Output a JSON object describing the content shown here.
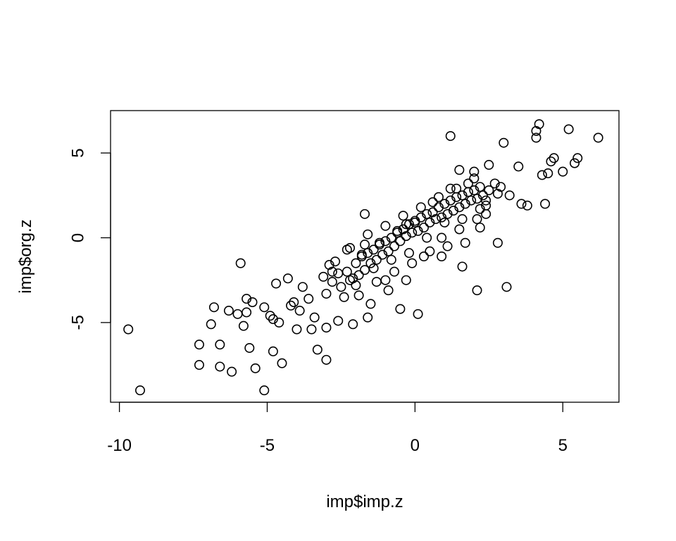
{
  "chart_data": {
    "type": "scatter",
    "title": "",
    "xlabel": "imp$imp.z",
    "ylabel": "imp$org.z",
    "xlim": [
      -10.3,
      6.9
    ],
    "ylim": [
      -9.7,
      7.5
    ],
    "x_ticks": [
      -10,
      -5,
      0,
      5
    ],
    "y_ticks": [
      -5,
      0,
      5
    ],
    "x_tick_labels": [
      "-10",
      "-5",
      "0",
      "5"
    ],
    "y_tick_labels": [
      "-5",
      "0",
      "5"
    ],
    "grid": false,
    "legend": "none",
    "marker": "open-circle",
    "point_color": "#000000",
    "series": [
      {
        "x": [
          -9.7,
          -9.3,
          -7.3,
          -7.3,
          -6.9,
          -6.8,
          -6.6,
          -6.6,
          -6.3,
          -6.2,
          -6.0,
          -5.9,
          -5.8,
          -5.7,
          -5.7,
          -5.6,
          -5.5,
          -5.4,
          -5.1,
          -5.1,
          -4.9,
          -4.8,
          -4.8,
          -4.7,
          -4.6,
          -4.5,
          -4.3,
          -4.2,
          -4.1,
          -4.0,
          -3.9,
          -3.8,
          -3.6,
          -3.5,
          -3.4,
          -3.3,
          -3.1,
          -3.0,
          -3.0,
          -2.9,
          -2.8,
          -2.6,
          -2.3,
          -2.2,
          -2.1,
          -1.7,
          -1.7,
          -1.6,
          -1.0,
          -0.5,
          -0.3,
          0.1,
          0.9,
          1.2,
          1.5,
          1.6,
          2.0,
          2.1,
          2.2,
          2.4,
          2.5,
          2.8,
          3.0,
          3.1,
          3.2,
          3.5,
          3.6,
          3.8,
          4.1,
          4.1,
          4.2,
          4.3,
          4.4,
          4.5,
          4.6,
          4.7,
          5.0,
          5.2,
          5.4,
          5.5,
          6.2
        ],
        "y": [
          -5.4,
          -9.0,
          -6.3,
          -7.5,
          -5.1,
          -4.1,
          -6.3,
          -7.6,
          -4.3,
          -7.9,
          -4.5,
          -1.5,
          -5.2,
          -3.6,
          -4.4,
          -6.5,
          -3.8,
          -7.7,
          -4.1,
          -9.0,
          -4.6,
          -4.8,
          -6.7,
          -2.7,
          -5.0,
          -7.4,
          -2.4,
          -4.0,
          -3.8,
          -5.4,
          -4.3,
          -2.9,
          -3.6,
          -5.4,
          -4.7,
          -6.6,
          -2.3,
          -5.3,
          -7.2,
          -1.6,
          -2.0,
          -4.9,
          -0.7,
          -2.5,
          -5.1,
          -0.4,
          1.4,
          -4.7,
          -2.5,
          -4.2,
          0.8,
          -4.5,
          -1.1,
          6.0,
          4.0,
          -1.7,
          3.9,
          -3.1,
          0.6,
          1.4,
          4.3,
          -0.3,
          5.6,
          -2.9,
          2.5,
          4.2,
          2.0,
          1.9,
          6.3,
          5.9,
          6.7,
          3.7,
          2.0,
          3.8,
          4.5,
          4.7,
          3.9,
          6.4,
          4.4,
          4.7,
          5.9
        ]
      },
      {
        "x": [
          -3.0,
          -2.8,
          -2.5,
          -2.3,
          -2.1,
          -2.0,
          -1.9,
          -1.8,
          -1.7,
          -1.6,
          -1.5,
          -1.4,
          -1.3,
          -1.2,
          -1.1,
          -1.0,
          -0.9,
          -0.8,
          -0.7,
          -0.6,
          -0.5,
          -0.4,
          -0.3,
          -0.2,
          -0.1,
          0.0,
          0.1,
          0.2,
          0.3,
          0.4,
          0.5,
          0.6,
          0.7,
          0.8,
          0.9,
          1.0,
          1.1,
          1.2,
          1.3,
          1.4,
          1.5,
          1.6,
          1.7,
          1.8,
          1.9,
          2.0,
          2.1,
          2.2,
          2.3,
          2.5,
          2.7,
          2.9,
          -2.7,
          -2.4,
          -2.2,
          -1.9,
          -1.6,
          -1.3,
          -1.0,
          -0.7,
          -0.4,
          -0.1,
          0.2,
          0.5,
          0.8,
          1.1,
          1.4,
          1.7,
          2.0,
          2.4,
          -2.6,
          -2.0,
          -1.4,
          -0.8,
          -0.2,
          0.4,
          1.0,
          1.6,
          2.2,
          2.8,
          -1.8,
          -1.2,
          -0.6,
          0.0,
          0.6,
          1.2,
          1.8,
          2.4,
          -1.5,
          -0.9,
          -0.3,
          0.3,
          0.9,
          1.5,
          2.1
        ],
        "y": [
          -3.3,
          -2.6,
          -2.9,
          -2.0,
          -2.4,
          -1.5,
          -2.2,
          -1.1,
          -1.9,
          -0.9,
          -1.5,
          -0.7,
          -1.3,
          -0.4,
          -1.0,
          -0.2,
          -0.8,
          0.0,
          -0.5,
          0.3,
          -0.2,
          0.5,
          0.1,
          0.8,
          0.3,
          1.0,
          0.4,
          1.2,
          0.6,
          1.4,
          0.9,
          1.5,
          1.1,
          1.8,
          1.2,
          2.0,
          1.4,
          2.2,
          1.6,
          2.4,
          1.8,
          2.5,
          2.0,
          2.7,
          2.2,
          2.8,
          2.3,
          3.0,
          2.5,
          2.8,
          3.2,
          3.0,
          -1.4,
          -3.5,
          -0.6,
          -3.4,
          0.2,
          -2.6,
          0.7,
          -2.0,
          1.3,
          -1.5,
          1.8,
          -0.8,
          2.4,
          -0.5,
          2.9,
          -0.3,
          3.5,
          1.9,
          -2.1,
          -2.8,
          -1.8,
          -1.3,
          -0.9,
          0.0,
          0.9,
          1.1,
          1.7,
          2.6,
          -1.0,
          -0.3,
          0.4,
          0.9,
          2.1,
          2.9,
          3.2,
          2.2,
          -3.9,
          -3.1,
          -2.5,
          -1.1,
          0.0,
          0.5,
          1.1
        ]
      }
    ]
  }
}
